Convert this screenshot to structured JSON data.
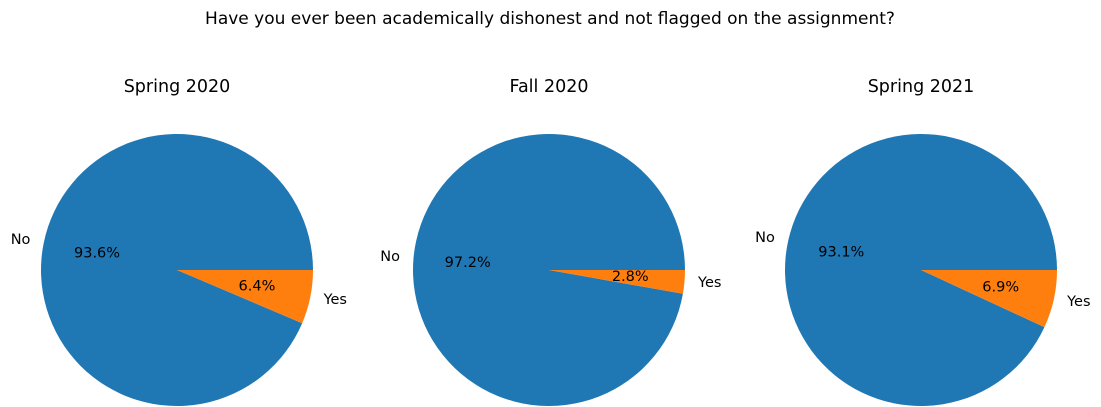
{
  "figure": {
    "title": "Have you ever been academically dishonest and not flagged on the assignment?"
  },
  "colors": {
    "No": "#1f77b4",
    "Yes": "#ff7f0e"
  },
  "chart_data": [
    {
      "type": "pie",
      "title": "Spring 2020",
      "categories": [
        "No",
        "Yes"
      ],
      "values": [
        93.6,
        6.4
      ],
      "labels": [
        "93.6%",
        "6.4%"
      ]
    },
    {
      "type": "pie",
      "title": "Fall 2020",
      "categories": [
        "No",
        "Yes"
      ],
      "values": [
        97.2,
        2.8
      ],
      "labels": [
        "97.2%",
        "2.8%"
      ]
    },
    {
      "type": "pie",
      "title": "Spring 2021",
      "categories": [
        "No",
        "Yes"
      ],
      "values": [
        93.1,
        6.9
      ],
      "labels": [
        "93.1%",
        "6.9%"
      ]
    }
  ]
}
